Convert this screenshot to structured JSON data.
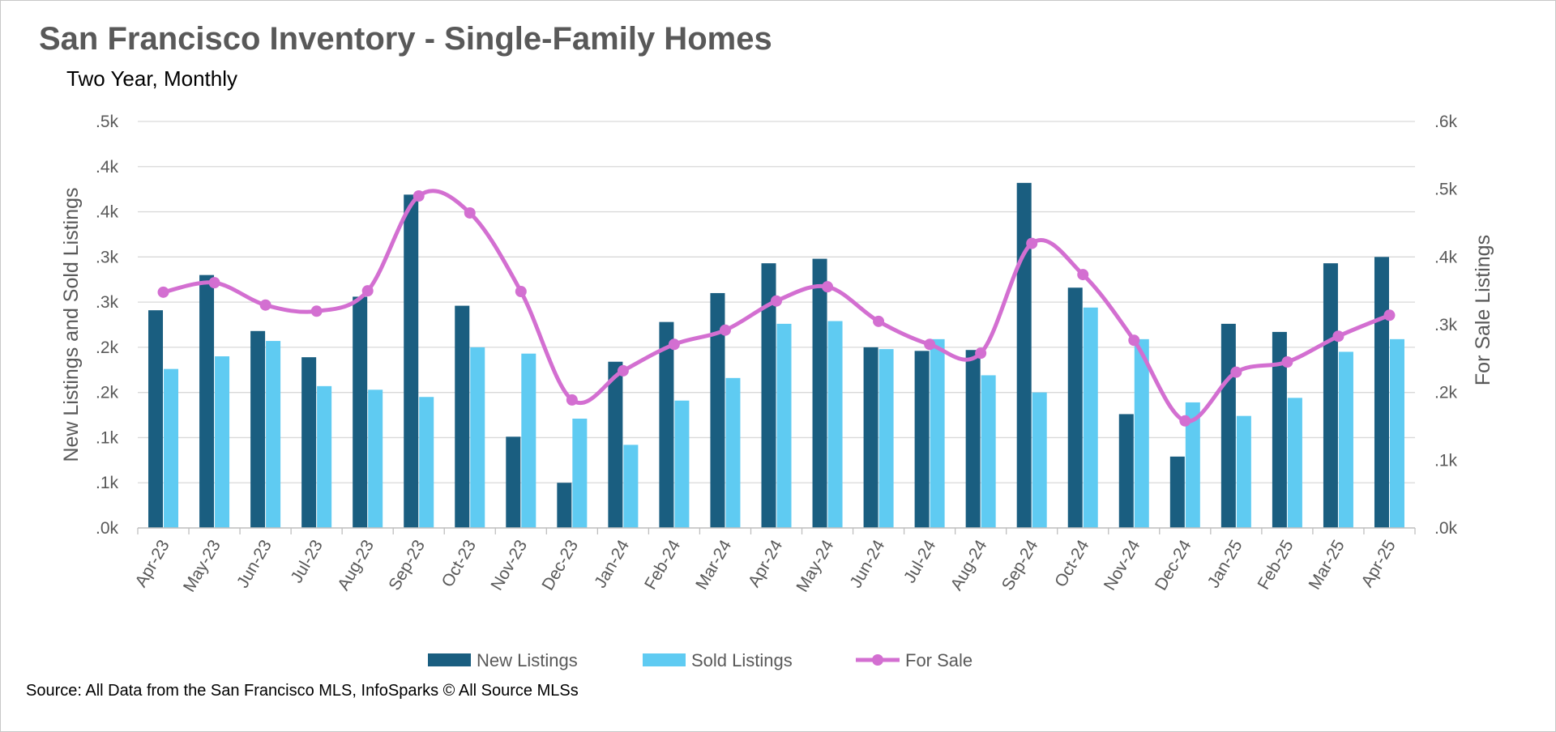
{
  "header": {
    "title": "San Francisco Inventory - Single-Family Homes",
    "subtitle": "Two Year, Monthly"
  },
  "footer": {
    "source": "Source: All Data from the San Francisco MLS, InfoSparks © All Source MLSs"
  },
  "colors": {
    "new_listings": "#1A5E80",
    "sold_listings": "#5FCBF2",
    "for_sale": "#D36FD1",
    "grid": "#D9D9D9",
    "text": "#595959"
  },
  "chart_data": {
    "type": "bar",
    "title": "San Francisco Inventory - Single-Family Homes",
    "subtitle": "Two Year, Monthly",
    "categories": [
      "Apr-23",
      "May-23",
      "Jun-23",
      "Jul-23",
      "Aug-23",
      "Sep-23",
      "Oct-23",
      "Nov-23",
      "Dec-23",
      "Jan-24",
      "Feb-24",
      "Mar-24",
      "Apr-24",
      "May-24",
      "Jun-24",
      "Jul-24",
      "Aug-24",
      "Sep-24",
      "Oct-24",
      "Nov-24",
      "Dec-24",
      "Jan-25",
      "Feb-25",
      "Mar-25",
      "Apr-25"
    ],
    "ylabel": "New Listings and Sold Listings",
    "y2label": "For Sale Listings",
    "ylim": [
      0,
      450
    ],
    "y2lim": [
      0,
      600
    ],
    "y_tick_labels": [
      ".0k",
      ".1k",
      ".1k",
      ".2k",
      ".2k",
      ".3k",
      ".3k",
      ".4k",
      ".4k",
      ".5k"
    ],
    "y2_tick_labels": [
      ".0k",
      ".1k",
      ".2k",
      ".3k",
      ".4k",
      ".5k",
      ".6k"
    ],
    "grid": true,
    "legend_position": "bottom",
    "series": [
      {
        "name": "New Listings",
        "type": "bar",
        "axis": "left",
        "values": [
          241,
          280,
          218,
          189,
          256,
          369,
          246,
          101,
          50,
          184,
          228,
          260,
          293,
          298,
          200,
          196,
          197,
          382,
          266,
          126,
          79,
          226,
          217,
          293,
          300
        ]
      },
      {
        "name": "Sold Listings",
        "type": "bar",
        "axis": "left",
        "values": [
          176,
          190,
          207,
          157,
          153,
          145,
          200,
          193,
          121,
          92,
          141,
          166,
          226,
          229,
          198,
          209,
          169,
          150,
          244,
          209,
          139,
          124,
          144,
          195,
          209
        ]
      },
      {
        "name": "For Sale",
        "type": "line",
        "axis": "right",
        "smooth": true,
        "values": [
          348,
          362,
          329,
          320,
          350,
          490,
          465,
          349,
          189,
          232,
          271,
          292,
          335,
          356,
          305,
          271,
          258,
          420,
          374,
          277,
          158,
          230,
          245,
          283,
          314
        ]
      }
    ]
  }
}
